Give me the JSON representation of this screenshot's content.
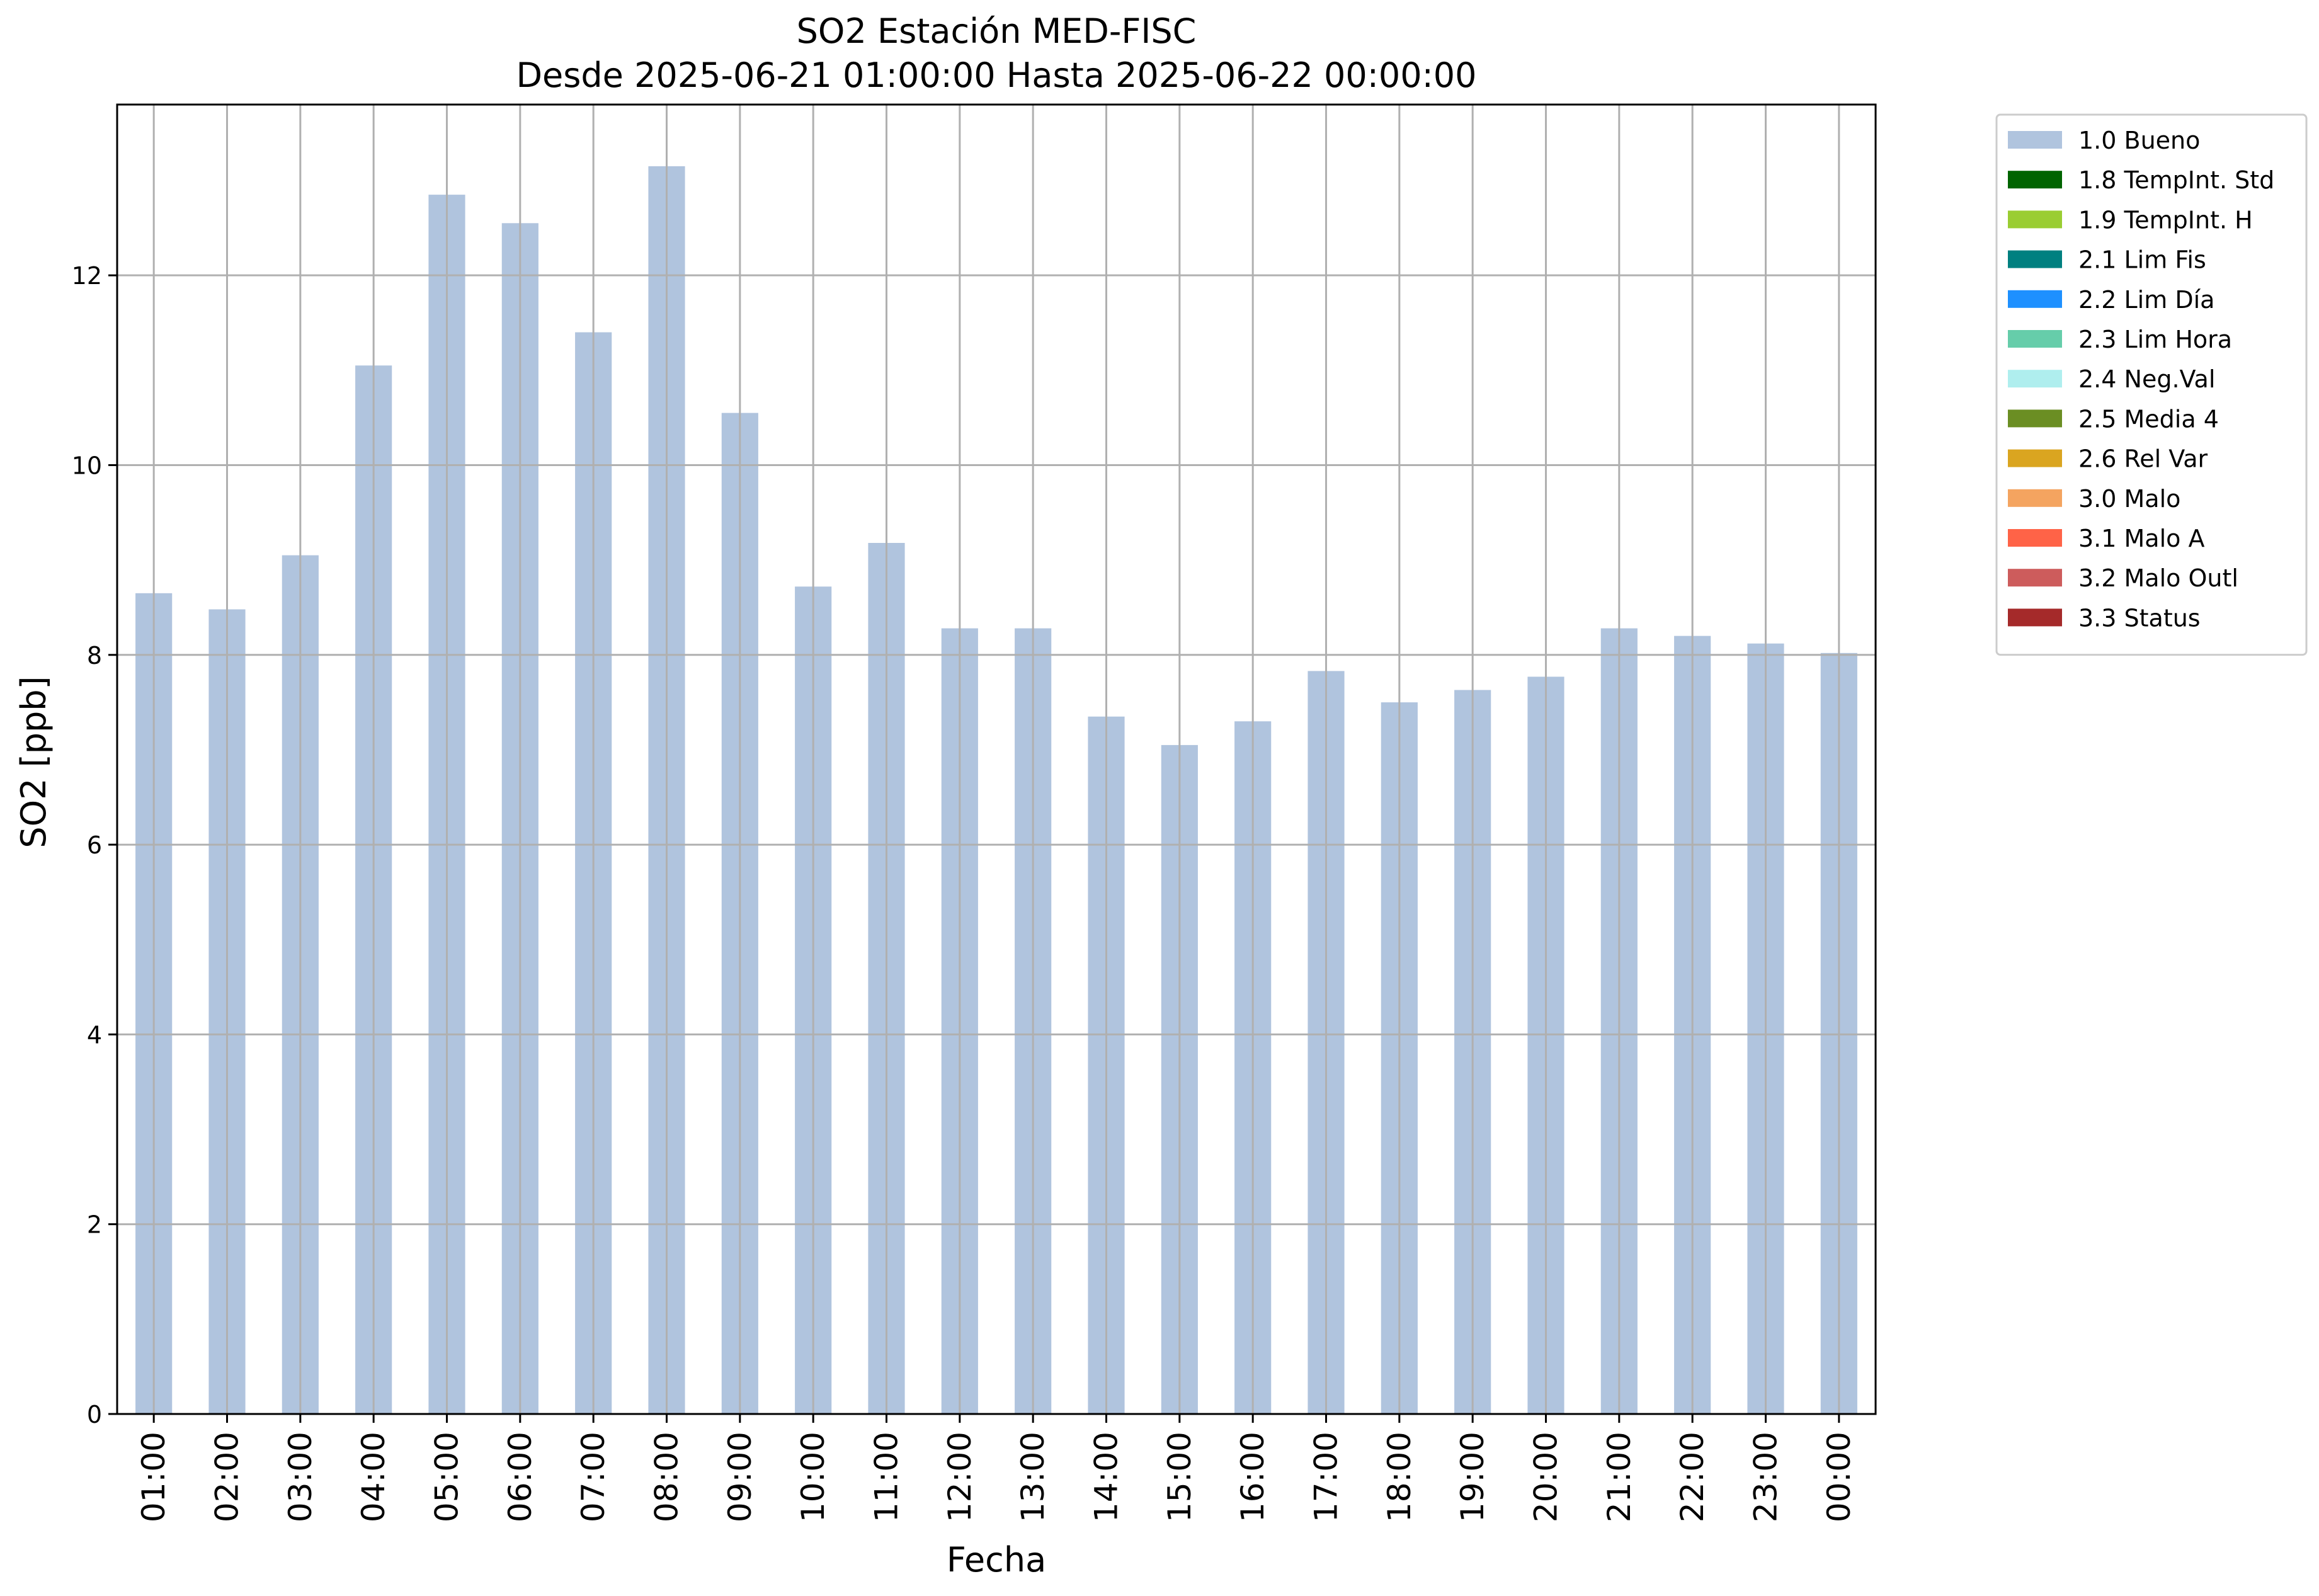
{
  "chart_data": {
    "type": "bar",
    "title": "SO2 Estación MED-FISC",
    "subtitle": "Desde 2025-06-21 01:00:00 Hasta 2025-06-22 00:00:00",
    "xlabel": "Fecha",
    "ylabel": "SO2 [ppb]",
    "ylim": [
      0,
      13.8
    ],
    "yticks": [
      0,
      2,
      4,
      6,
      8,
      10,
      12
    ],
    "grid": true,
    "legend_position": "outside-top-right",
    "categories": [
      "01:00",
      "02:00",
      "03:00",
      "04:00",
      "05:00",
      "06:00",
      "07:00",
      "08:00",
      "09:00",
      "10:00",
      "11:00",
      "12:00",
      "13:00",
      "14:00",
      "15:00",
      "16:00",
      "17:00",
      "18:00",
      "19:00",
      "20:00",
      "21:00",
      "22:00",
      "23:00",
      "00:00"
    ],
    "series": [
      {
        "name": "1.0 Bueno",
        "color": "#b0c4de",
        "values": [
          8.65,
          8.48,
          9.05,
          11.05,
          12.85,
          12.55,
          11.4,
          13.15,
          10.55,
          8.72,
          9.18,
          8.28,
          8.28,
          7.35,
          7.05,
          7.3,
          7.83,
          7.5,
          7.63,
          7.77,
          8.28,
          8.2,
          8.12,
          8.02
        ]
      }
    ],
    "legend": [
      {
        "label": "1.0 Bueno",
        "color": "#b0c4de"
      },
      {
        "label": "1.8 TempInt. Std",
        "color": "#006400"
      },
      {
        "label": "1.9 TempInt. H",
        "color": "#9acd32"
      },
      {
        "label": "2.1 Lim Fis",
        "color": "#008080"
      },
      {
        "label": "2.2 Lim Día",
        "color": "#1e90ff"
      },
      {
        "label": "2.3 Lim Hora",
        "color": "#66cdaa"
      },
      {
        "label": "2.4 Neg.Val",
        "color": "#afeeee"
      },
      {
        "label": "2.5 Media 4",
        "color": "#6b8e23"
      },
      {
        "label": "2.6 Rel Var",
        "color": "#daa520"
      },
      {
        "label": "3.0 Malo",
        "color": "#f4a460"
      },
      {
        "label": "3.1 Malo A",
        "color": "#ff6347"
      },
      {
        "label": "3.2 Malo Outl",
        "color": "#cd5c5c"
      },
      {
        "label": "3.3 Status",
        "color": "#a52a2a"
      }
    ]
  }
}
